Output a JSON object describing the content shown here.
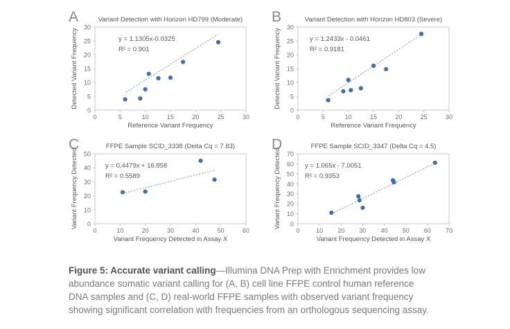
{
  "colors": {
    "point": "#3f6cb5",
    "trendline": "#7e9cd0",
    "axis": "#c7c8ca",
    "tick_text": "#6d6e71",
    "title_text": "#55565a",
    "panel_letter": "#85878a",
    "caption_bold": "#505155",
    "caption_text": "#797a7d"
  },
  "caption": {
    "bold": "Figure 5: Accurate variant calling",
    "dash": "—",
    "text": "Illumina DNA Prep with Enrichment provides low abundance somatic variant calling for (A, B) cell line FFPE control human reference DNA samples and (C, D) real-world FFPE samples with observed variant frequency showing significant correlation with frequencies from an orthologous sequencing assay."
  },
  "chart_data": [
    {
      "type": "scatter",
      "panel_label": "A",
      "title": "Variant Detection with Horizon HD799 (Moderate)",
      "equation": "y = 1.1305x-0.0325",
      "r_squared": "R² = 0.901",
      "xlabel": "Reference Variant Frequency",
      "ylabel": "Detected Variant Frequency",
      "xlim": [
        0,
        30
      ],
      "ylim": [
        0,
        30
      ],
      "xticks": [
        0,
        5,
        10,
        15,
        20,
        25,
        30
      ],
      "yticks": [
        0,
        5,
        10,
        15,
        20,
        25,
        30
      ],
      "points": [
        [
          6,
          3.9
        ],
        [
          9,
          4.2
        ],
        [
          10,
          7.5
        ],
        [
          10.7,
          13.1
        ],
        [
          12.6,
          11.5
        ],
        [
          15,
          11.7
        ],
        [
          17.5,
          17.4
        ],
        [
          24.5,
          24.5
        ]
      ],
      "trendline": {
        "x1": 6.2,
        "y1": 6.5,
        "x2": 24.4,
        "y2": 27.3
      },
      "grid": false,
      "legend": false
    },
    {
      "type": "scatter",
      "panel_label": "B",
      "title": "Variant Detection with Horizon HD803 (Severe)",
      "equation": "y = 1.2433x - 0.0461",
      "r_squared": "R² = 0.9181",
      "xlabel": "Reference Variant Frequency",
      "ylabel": "Detected Variant Frequency",
      "xlim": [
        0,
        30
      ],
      "ylim": [
        0,
        30
      ],
      "xticks": [
        0,
        5,
        10,
        15,
        20,
        25,
        30
      ],
      "yticks": [
        0,
        5,
        10,
        15,
        20,
        25,
        30
      ],
      "points": [
        [
          6,
          3.6
        ],
        [
          9,
          6.8
        ],
        [
          10,
          10.9
        ],
        [
          10.5,
          7.2
        ],
        [
          12.5,
          7.9
        ],
        [
          15,
          16
        ],
        [
          17.5,
          14.8
        ],
        [
          24.5,
          27.5
        ]
      ],
      "trendline": {
        "x1": 6.1,
        "y1": 5.2,
        "x2": 24.2,
        "y2": 27.0
      },
      "grid": false,
      "legend": false
    },
    {
      "type": "scatter",
      "panel_label": "C",
      "title": "FFPE Sample SCID_3338 (Delta Cq = 7.83)",
      "equation": "y = 0.4479x + 16.858",
      "r_squared": "R² = 0.5589",
      "xlabel": "Variant Frequency Detected in Assay X",
      "ylabel": "Variant Frequency Detected",
      "xlim": [
        0,
        60
      ],
      "ylim": [
        0,
        50
      ],
      "xticks": [
        0,
        10,
        20,
        30,
        40,
        50,
        60
      ],
      "yticks": [
        0,
        10,
        20,
        30,
        40,
        50
      ],
      "points": [
        [
          11,
          22.5
        ],
        [
          20,
          23
        ],
        [
          42,
          45
        ],
        [
          47.5,
          31.5
        ]
      ],
      "trendline": {
        "x1": 11,
        "y1": 21.6,
        "x2": 48,
        "y2": 38.5
      },
      "grid": false,
      "legend": false
    },
    {
      "type": "scatter",
      "panel_label": "D",
      "title": "FFPE Sample SCID_3347 (Delta Cq = 4.5)",
      "equation": "y = 1.065x - 7.0051",
      "r_squared": "R² = 0.9353",
      "xlabel": "Variant Frequency Detected in Assay X",
      "ylabel": "Variant Frequency Detected",
      "xlim": [
        0,
        70
      ],
      "ylim": [
        0,
        70
      ],
      "xticks": [
        0,
        10,
        20,
        30,
        40,
        50,
        60,
        70
      ],
      "yticks": [
        0,
        10,
        20,
        30,
        40,
        50,
        60,
        70
      ],
      "points": [
        [
          15.5,
          11
        ],
        [
          28,
          27.5
        ],
        [
          28.5,
          23.5
        ],
        [
          30,
          16
        ],
        [
          44,
          43.5
        ],
        [
          44.5,
          41.5
        ],
        [
          63.5,
          61
        ]
      ],
      "trendline": {
        "x1": 15.5,
        "y1": 9.8,
        "x2": 63.8,
        "y2": 60.9
      },
      "grid": false,
      "legend": false
    }
  ]
}
